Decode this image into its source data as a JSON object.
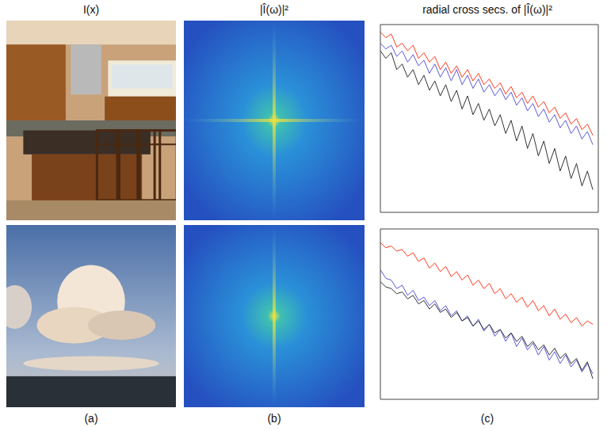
{
  "headers": [
    "I(x)",
    "|Î(ω)|²",
    "radial cross secs. of |Î(ω)|²"
  ],
  "panel_labels": [
    "(a)",
    "(b)",
    "(c)"
  ],
  "chart_data": [
    {
      "type": "line",
      "tick_labels": false,
      "x": [
        0,
        1,
        2,
        3,
        4,
        5,
        6,
        7,
        8,
        9,
        10,
        11,
        12,
        13,
        14,
        15,
        16,
        17,
        18,
        19,
        20,
        21,
        22,
        23,
        24,
        25,
        26,
        27,
        28,
        29,
        30,
        31,
        32,
        33,
        34,
        35,
        36,
        37,
        38,
        39
      ],
      "xlim": [
        0,
        40
      ],
      "xticks": [
        0,
        5,
        10,
        15,
        20,
        25,
        30,
        35,
        40
      ],
      "ylim": [
        0,
        10
      ],
      "yticks": [
        0,
        1,
        2,
        3,
        4,
        5,
        6,
        7,
        8,
        9,
        10
      ],
      "series": [
        {
          "color": "#ff3a1e",
          "values": [
            9.6,
            9.3,
            9.5,
            8.8,
            9.0,
            8.6,
            8.9,
            8.2,
            8.5,
            8.0,
            8.3,
            7.6,
            8.0,
            7.4,
            7.8,
            7.2,
            7.6,
            7.0,
            7.4,
            6.8,
            7.1,
            6.6,
            6.9,
            6.3,
            6.7,
            6.1,
            6.4,
            5.8,
            6.2,
            5.6,
            5.9,
            5.3,
            5.6,
            5.0,
            5.3,
            4.7,
            5.0,
            4.4,
            4.7,
            4.1
          ]
        },
        {
          "color": "#5b5bd6",
          "values": [
            9.0,
            8.7,
            8.9,
            8.3,
            8.6,
            8.0,
            8.4,
            7.8,
            8.1,
            7.4,
            7.9,
            7.2,
            7.7,
            7.0,
            7.6,
            6.8,
            7.3,
            6.6,
            7.1,
            6.4,
            6.8,
            6.2,
            6.6,
            6.0,
            6.4,
            5.7,
            6.1,
            5.4,
            5.8,
            5.1,
            5.5,
            4.8,
            5.2,
            4.5,
            4.9,
            4.2,
            4.6,
            3.9,
            4.3,
            3.6
          ]
        },
        {
          "color": "#333333",
          "values": [
            8.6,
            8.2,
            8.5,
            7.6,
            7.9,
            7.2,
            7.6,
            6.8,
            7.3,
            6.5,
            7.0,
            6.2,
            6.8,
            5.9,
            6.5,
            5.5,
            6.2,
            5.2,
            5.8,
            4.9,
            5.5,
            4.6,
            5.2,
            4.2,
            4.9,
            3.8,
            4.6,
            3.4,
            4.2,
            3.0,
            3.8,
            2.6,
            3.4,
            2.2,
            3.0,
            1.8,
            2.6,
            1.4,
            2.2,
            1.2
          ]
        }
      ]
    },
    {
      "type": "line",
      "tick_labels": false,
      "x": [
        0,
        1,
        2,
        3,
        4,
        5,
        6,
        7,
        8,
        9,
        10,
        11,
        12,
        13,
        14,
        15,
        16,
        17,
        18,
        19,
        20,
        21,
        22,
        23,
        24,
        25,
        26,
        27,
        28,
        29,
        30,
        31,
        32,
        33,
        34,
        35,
        36,
        37,
        38,
        39
      ],
      "xlim": [
        0,
        40
      ],
      "xticks": [
        0,
        5,
        10,
        15,
        20,
        25,
        30,
        35,
        40
      ],
      "ylim": [
        0,
        10
      ],
      "yticks": [
        0,
        1,
        2,
        3,
        4,
        5,
        6,
        7,
        8,
        9,
        10
      ],
      "series": [
        {
          "color": "#ff3a1e",
          "values": [
            9.2,
            8.9,
            9.0,
            8.7,
            8.8,
            8.4,
            8.6,
            8.1,
            8.3,
            7.7,
            8.0,
            7.5,
            7.8,
            7.2,
            7.5,
            7.0,
            7.3,
            6.7,
            7.0,
            6.5,
            6.8,
            6.2,
            6.5,
            5.9,
            6.2,
            5.7,
            6.0,
            5.4,
            5.8,
            5.2,
            5.5,
            4.9,
            5.3,
            4.7,
            5.0,
            4.5,
            4.8,
            4.3,
            4.6,
            4.4
          ]
        },
        {
          "color": "#5b5bd6",
          "values": [
            7.6,
            7.1,
            7.0,
            6.5,
            6.7,
            6.1,
            6.4,
            5.8,
            6.0,
            5.5,
            5.8,
            5.2,
            5.5,
            4.9,
            5.2,
            4.6,
            4.9,
            4.3,
            4.7,
            4.0,
            4.4,
            3.7,
            4.1,
            3.4,
            3.9,
            3.1,
            3.6,
            2.9,
            3.3,
            2.6,
            3.1,
            2.3,
            2.8,
            2.1,
            2.6,
            1.9,
            2.3,
            1.6,
            2.1,
            1.5
          ]
        },
        {
          "color": "#333333",
          "values": [
            6.9,
            6.6,
            6.5,
            6.2,
            6.3,
            5.9,
            6.1,
            5.6,
            5.8,
            5.3,
            5.6,
            5.1,
            5.3,
            4.8,
            5.1,
            4.6,
            4.8,
            4.3,
            4.6,
            4.1,
            4.4,
            3.9,
            4.1,
            3.6,
            3.9,
            3.4,
            3.7,
            3.1,
            3.4,
            2.9,
            3.2,
            2.6,
            3.0,
            2.4,
            2.7,
            2.1,
            2.4,
            1.7,
            2.2,
            1.2
          ]
        }
      ]
    }
  ]
}
